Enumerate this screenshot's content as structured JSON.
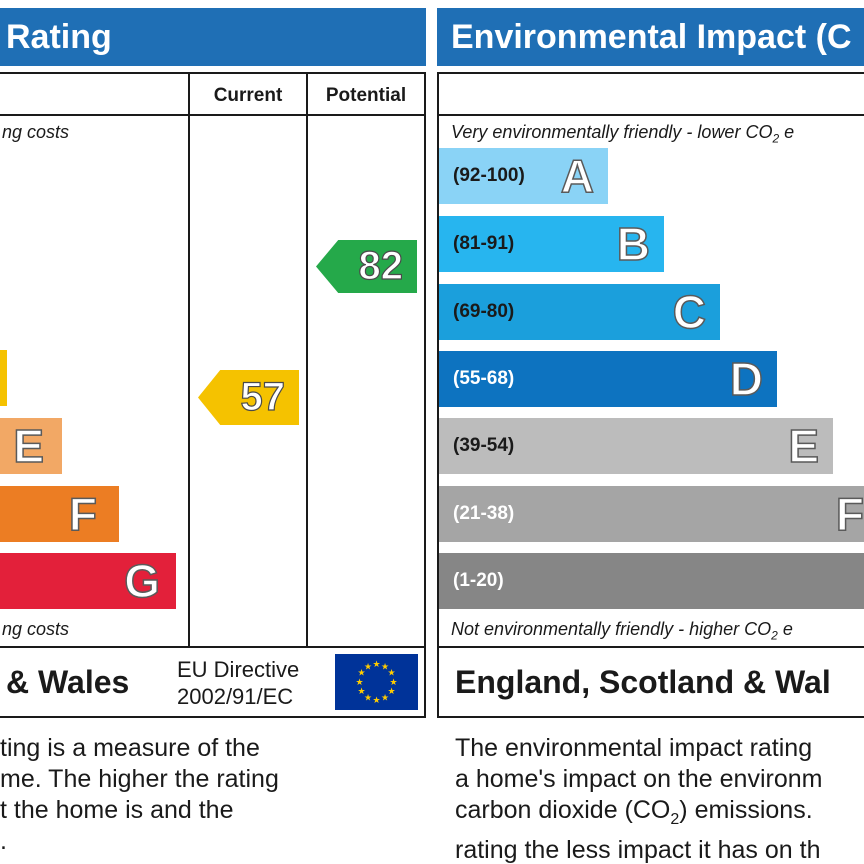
{
  "energy": {
    "title": "Rating",
    "col_current": "Current",
    "col_potential": "Potential",
    "top_note": "ng costs",
    "bottom_note": "ng costs",
    "bars": [
      {
        "letter": "",
        "color": "#f5c200"
      },
      {
        "letter": "E",
        "color": "#f2a865"
      },
      {
        "letter": "F",
        "color": "#ec7d23"
      },
      {
        "letter": "G",
        "color": "#e3203a"
      }
    ],
    "current": {
      "value": "57",
      "color": "#f5c200"
    },
    "potential": {
      "value": "82",
      "color": "#25a94a"
    },
    "footer_region": "& Wales",
    "eu_line1": "EU Directive",
    "eu_line2": "2002/91/EC",
    "paragraph": [
      "ting is a measure of the",
      "me. The higher the rating",
      "t the home is and the",
      "."
    ]
  },
  "environment": {
    "title": "Environmental Impact (C",
    "top_note_a": "Very environmentally friendly - lower CO",
    "top_note_sub": "2",
    "top_note_b": " e",
    "bottom_note_a": "Not environmentally friendly - higher CO",
    "bottom_note_sub": "2",
    "bottom_note_b": " e",
    "bars": [
      {
        "range": "(92-100)",
        "letter": "A",
        "color": "#8ad3f6"
      },
      {
        "range": "(81-91)",
        "letter": "B",
        "color": "#27b5ef"
      },
      {
        "range": "(69-80)",
        "letter": "C",
        "color": "#1b9fdc"
      },
      {
        "range": "(55-68)",
        "letter": "D",
        "color": "#0d73c0"
      },
      {
        "range": "(39-54)",
        "letter": "E",
        "color": "#bcbcbc"
      },
      {
        "range": "(21-38)",
        "letter": "F",
        "color": "#a5a5a5"
      },
      {
        "range": "(1-20)",
        "letter": "",
        "color": "#868686"
      }
    ],
    "footer_region": "England, Scotland & Wal",
    "para_line1": "The environmental impact rating",
    "para_line2": "a home's impact on the environm",
    "para_line3a": "carbon dioxide (CO",
    "para_line3sub": "2",
    "para_line3b": ") emissions.",
    "para_line4": "rating the less impact it has on th"
  }
}
